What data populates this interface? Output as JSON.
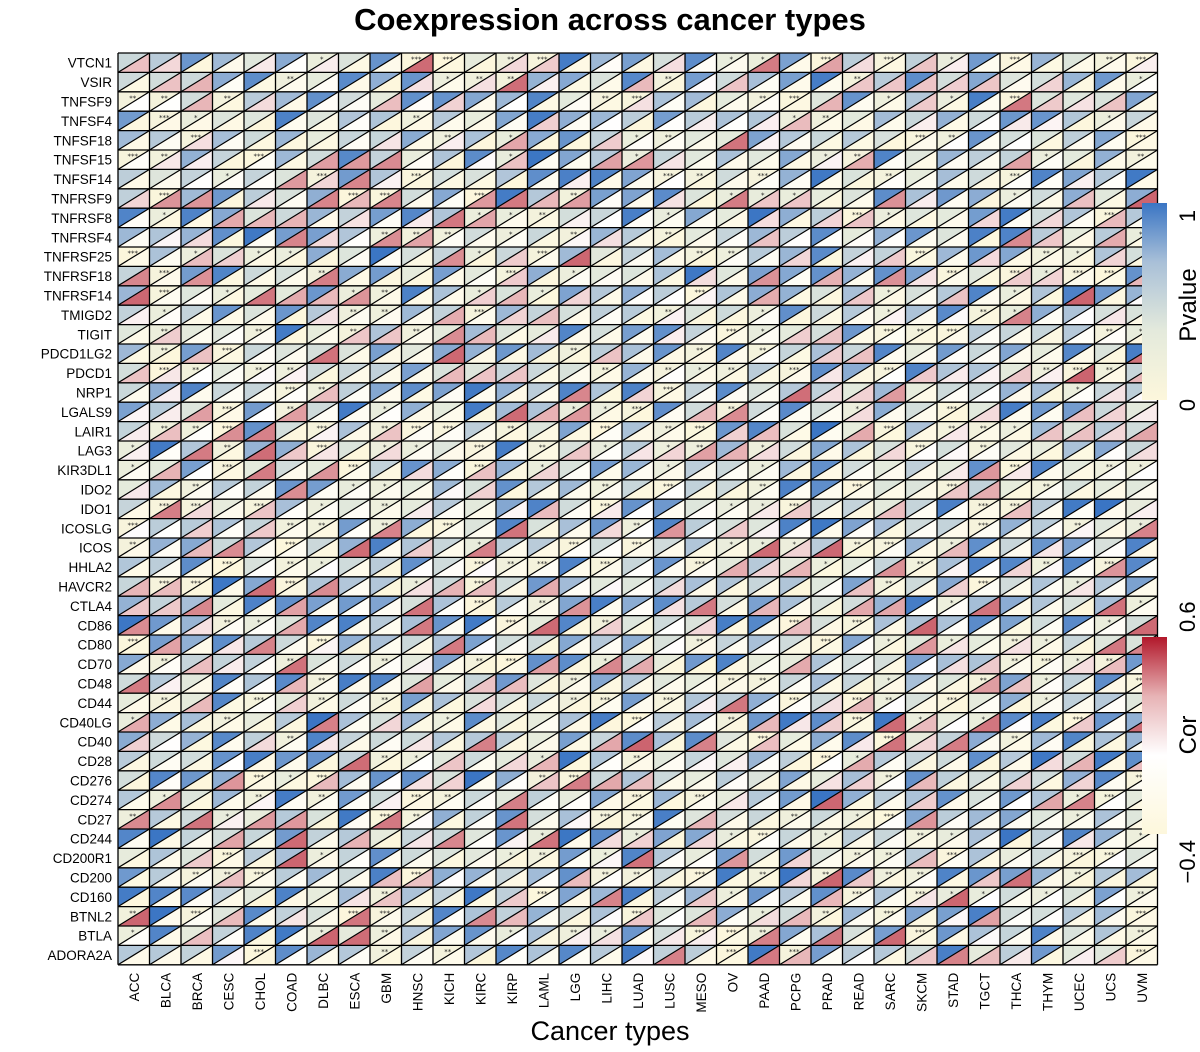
{
  "chart_data": {
    "type": "heatmap",
    "title": "Coexpression across cancer types",
    "xlabel": "Cancer types",
    "cancer_types": [
      "ACC",
      "BLCA",
      "BRCA",
      "CESC",
      "CHOL",
      "COAD",
      "DLBC",
      "ESCA",
      "GBM",
      "HNSC",
      "KICH",
      "KIRC",
      "KIRP",
      "LAML",
      "LGG",
      "LIHC",
      "LUAD",
      "LUSC",
      "MESO",
      "OV",
      "PAAD",
      "PCPG",
      "PRAD",
      "READ",
      "SARC",
      "SKCM",
      "STAD",
      "TGCT",
      "THCA",
      "THYM",
      "UCEC",
      "UCS",
      "UVM"
    ],
    "genes": [
      "VTCN1",
      "VSIR",
      "TNFSF9",
      "TNFSF4",
      "TNFSF18",
      "TNFSF15",
      "TNFSF14",
      "TNFRSF9",
      "TNFRSF8",
      "TNFRSF4",
      "TNFRSF25",
      "TNFRSF18",
      "TNFRSF14",
      "TMIGD2",
      "TIGIT",
      "PDCD1LG2",
      "PDCD1",
      "NRP1",
      "LGALS9",
      "LAIR1",
      "LAG3",
      "KIR3DL1",
      "IDO2",
      "IDO1",
      "ICOSLG",
      "ICOS",
      "HHLA2",
      "HAVCR2",
      "CTLA4",
      "CD86",
      "CD80",
      "CD70",
      "CD48",
      "CD44",
      "CD40LG",
      "CD40",
      "CD28",
      "CD276",
      "CD274",
      "CD27",
      "CD244",
      "CD200R1",
      "CD200",
      "CD160",
      "BTNL2",
      "BTLA",
      "ADORA2A"
    ],
    "cell_layout": "each cell split diagonally: upper-left triangle = Pvalue, lower-right triangle = Cor; asterisks mark significance",
    "pvalue_legend": {
      "title": "Pvalue",
      "min": 0,
      "max": 1,
      "min_label": "0",
      "max_label": "1",
      "colors": [
        "#fdf7dc",
        "#e4eadc",
        "#a9c0d8",
        "#3a75c4"
      ]
    },
    "cor_legend": {
      "title": "Cor",
      "min": -0.4,
      "max": 0.6,
      "min_label": "−0.4",
      "max_label": "0.6",
      "colors": [
        "#fdf7dc",
        "#ffffff",
        "#e7b3b5",
        "#b2182b"
      ]
    }
  }
}
